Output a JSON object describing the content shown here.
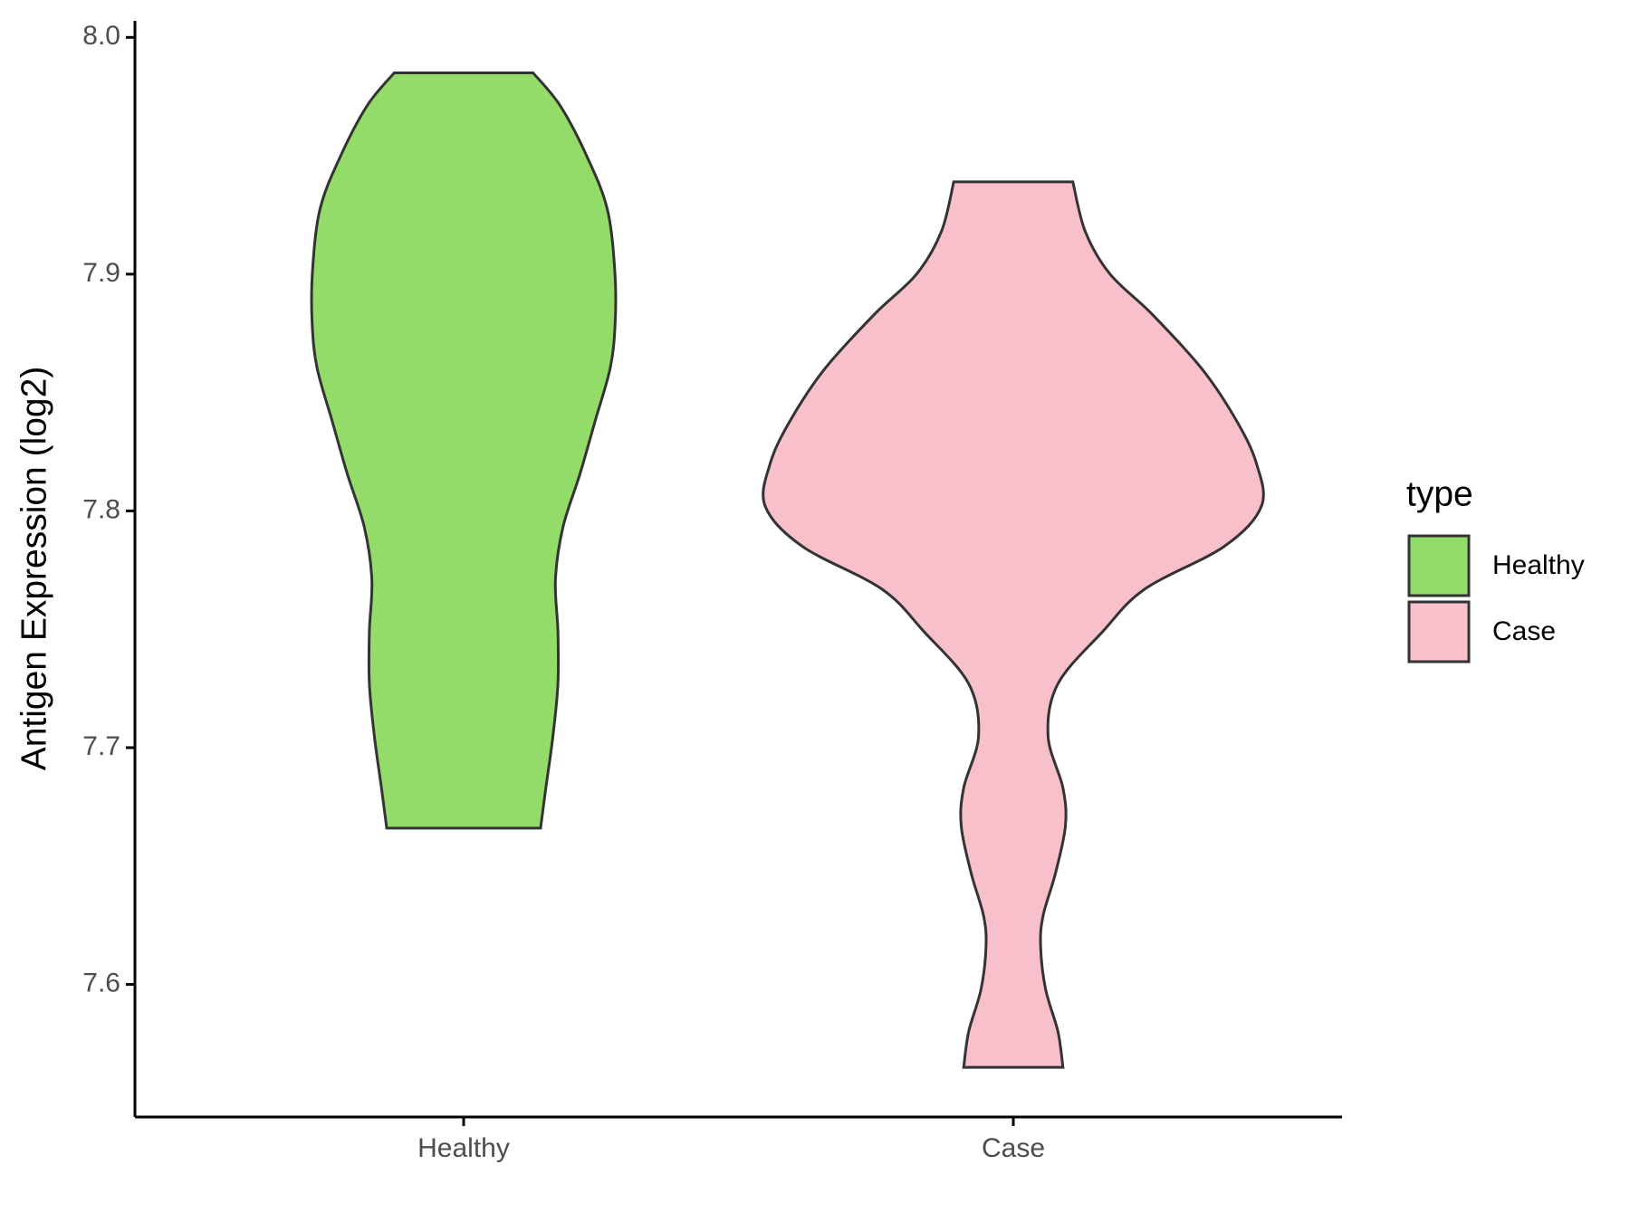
{
  "chart_data": {
    "type": "violin",
    "y_label": "Antigen Expression (log2)",
    "categories": [
      "Healthy",
      "Case"
    ],
    "legend_title": "type",
    "legend_position": "right",
    "ylim": [
      7.544,
      8.007
    ],
    "yticks": [
      7.6,
      7.7,
      7.8,
      7.9,
      {
        "value": 8,
        "label": "8.0"
      }
    ],
    "series": [
      {
        "name": "Healthy",
        "color": "#93dc69",
        "y": [
          7.985,
          7.971,
          7.949,
          7.927,
          7.9,
          7.878,
          7.86,
          7.838,
          7.816,
          7.793,
          7.771,
          7.749,
          7.727,
          7.705,
          7.682,
          7.666
        ],
        "width": [
          0.28,
          0.39,
          0.5,
          0.58,
          0.61,
          0.61,
          0.59,
          0.53,
          0.47,
          0.4,
          0.37,
          0.38,
          0.38,
          0.36,
          0.33,
          0.31
        ]
      },
      {
        "name": "Case",
        "color": "#f7c0cb",
        "y": [
          7.939,
          7.918,
          7.9,
          7.883,
          7.86,
          7.838,
          7.82,
          7.802,
          7.785,
          7.767,
          7.749,
          7.727,
          7.705,
          7.683,
          7.667,
          7.647,
          7.629,
          7.616,
          7.598,
          7.58,
          7.565
        ],
        "width": [
          0.24,
          0.29,
          0.39,
          0.56,
          0.76,
          0.9,
          0.98,
          1.0,
          0.85,
          0.53,
          0.36,
          0.18,
          0.14,
          0.2,
          0.21,
          0.17,
          0.12,
          0.11,
          0.13,
          0.18,
          0.2
        ]
      }
    ]
  }
}
